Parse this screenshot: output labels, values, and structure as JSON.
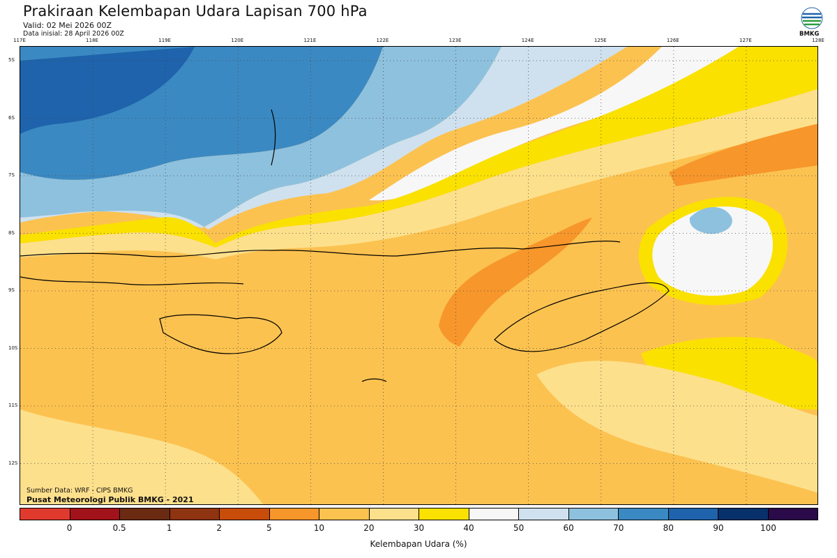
{
  "header": {
    "title": "Prakiraan Kelembapan Udara Lapisan 700 hPa",
    "valid": "Valid: 02 Mei 2026 00Z",
    "init": "Data inisial: 28 April 2026 00Z",
    "logo_text": "BMKG"
  },
  "axes": {
    "lon_labels": [
      "117E",
      "118E",
      "119E",
      "120E",
      "121E",
      "122E",
      "123E",
      "124E",
      "125E",
      "126E",
      "127E",
      "128E"
    ],
    "lat_labels": [
      "5S",
      "6S",
      "7S",
      "8S",
      "9S",
      "10S",
      "11S",
      "12S"
    ]
  },
  "credits": {
    "source": "Sumber Data: WRF - CIPS BMKG",
    "org": "Pusat Meteorologi Publik BMKG - 2021"
  },
  "colorbar": {
    "colors": [
      "#e03a2f",
      "#a1121a",
      "#6b2a12",
      "#8f3410",
      "#c84c0a",
      "#f7962b",
      "#fcc250",
      "#fde08c",
      "#fae100",
      "#f7f7f7",
      "#cfe1ef",
      "#8ec1de",
      "#3b89c2",
      "#1e63ab",
      "#08306b",
      "#2a0a48"
    ],
    "ticks": [
      "0",
      "0.5",
      "1",
      "2",
      "5",
      "10",
      "20",
      "30",
      "40",
      "50",
      "60",
      "70",
      "80",
      "90",
      "100"
    ],
    "unit": "Kelembapan Udara (%)"
  }
}
